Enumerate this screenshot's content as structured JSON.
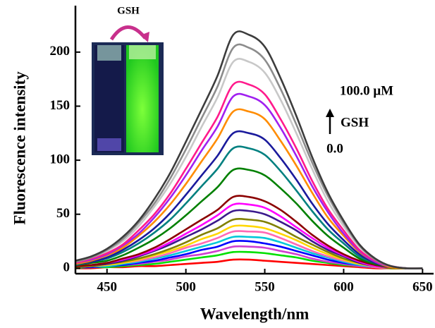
{
  "chart_data": {
    "type": "line",
    "x_label": "Wavelength/nm",
    "y_label": "Fluorescence intensity",
    "annotations": [
      "100.0 μM",
      "GSH",
      "0.0"
    ],
    "inset_label": "GSH",
    "x": [
      430,
      440,
      450,
      460,
      470,
      480,
      490,
      500,
      510,
      520,
      530,
      540,
      550,
      560,
      570,
      580,
      590,
      600,
      610,
      620,
      630,
      640,
      650
    ],
    "xlim": [
      430,
      657
    ],
    "ylim": [
      -5,
      243
    ],
    "xticks": [
      450,
      500,
      550,
      600,
      650
    ],
    "yticks": [
      0,
      50,
      100,
      150,
      200
    ],
    "series": [
      {
        "color": "#3c3c3c",
        "values": [
          7,
          11,
          18,
          29,
          44,
          64,
          88,
          117,
          147,
          178,
          216,
          216,
          205,
          176,
          141,
          103,
          70,
          44,
          22,
          9,
          2,
          0,
          0
        ]
      },
      {
        "color": "#8c8c8c",
        "values": [
          6,
          10,
          17,
          27,
          42,
          60,
          83,
          110,
          139,
          168,
          204,
          204,
          193,
          166,
          133,
          98,
          67,
          42,
          21,
          8,
          2,
          0,
          0
        ]
      },
      {
        "color": "#c8c8c8",
        "values": [
          6,
          10,
          16,
          25,
          39,
          57,
          78,
          103,
          131,
          158,
          191,
          191,
          181,
          156,
          125,
          92,
          62,
          39,
          20,
          8,
          2,
          0,
          0
        ]
      },
      {
        "color": "#ff1a8c",
        "values": [
          5,
          9,
          14,
          22,
          35,
          50,
          69,
          92,
          116,
          140,
          170,
          170,
          161,
          138,
          111,
          81,
          55,
          35,
          17,
          7,
          2,
          0,
          0
        ]
      },
      {
        "color": "#a020f0",
        "values": [
          5,
          8,
          13,
          21,
          32,
          47,
          65,
          86,
          109,
          131,
          159,
          159,
          151,
          130,
          104,
          76,
          52,
          32,
          16,
          6,
          2,
          0,
          0
        ]
      },
      {
        "color": "#ff8c00",
        "values": [
          4,
          7,
          12,
          19,
          30,
          43,
          59,
          78,
          99,
          120,
          145,
          145,
          138,
          118,
          95,
          70,
          47,
          30,
          15,
          6,
          1,
          0,
          0
        ]
      },
      {
        "color": "#1a1a9c",
        "values": [
          4,
          6,
          10,
          17,
          26,
          37,
          51,
          68,
          86,
          104,
          125,
          125,
          119,
          102,
          82,
          60,
          41,
          26,
          13,
          5,
          1,
          0,
          0
        ]
      },
      {
        "color": "#008080",
        "values": [
          3,
          6,
          9,
          15,
          23,
          33,
          45,
          60,
          76,
          92,
          111,
          111,
          105,
          90,
          72,
          53,
          36,
          23,
          11,
          5,
          1,
          0,
          0
        ]
      },
      {
        "color": "#008000",
        "values": [
          3,
          5,
          7,
          12,
          19,
          27,
          37,
          49,
          62,
          75,
          91,
          91,
          86,
          74,
          60,
          44,
          30,
          19,
          9,
          4,
          1,
          0,
          0
        ]
      },
      {
        "color": "#8b0000",
        "values": [
          2,
          3,
          5,
          9,
          13,
          19,
          27,
          36,
          45,
          54,
          66,
          66,
          62,
          54,
          43,
          31,
          21,
          13,
          7,
          3,
          1,
          0,
          0
        ]
      },
      {
        "color": "#ff00ff",
        "values": [
          2,
          3,
          5,
          8,
          12,
          17,
          24,
          32,
          40,
          49,
          59,
          59,
          56,
          48,
          38,
          28,
          19,
          12,
          6,
          2,
          1,
          0,
          0
        ]
      },
      {
        "color": "#3a1a8c",
        "values": [
          2,
          3,
          4,
          7,
          11,
          16,
          22,
          29,
          36,
          44,
          53,
          53,
          50,
          43,
          35,
          25,
          17,
          11,
          5,
          2,
          1,
          0,
          0
        ]
      },
      {
        "color": "#808000",
        "values": [
          1,
          2,
          4,
          6,
          9,
          13,
          18,
          24,
          31,
          37,
          45,
          45,
          43,
          37,
          29,
          22,
          15,
          9,
          5,
          2,
          0,
          0,
          0
        ]
      },
      {
        "color": "#ffd700",
        "values": [
          1,
          2,
          3,
          5,
          8,
          12,
          16,
          21,
          27,
          32,
          39,
          39,
          37,
          32,
          26,
          19,
          13,
          8,
          4,
          2,
          0,
          0,
          0
        ]
      },
      {
        "color": "#ff69b4",
        "values": [
          1,
          2,
          3,
          5,
          7,
          10,
          14,
          19,
          23,
          28,
          34,
          34,
          33,
          28,
          22,
          16,
          11,
          7,
          4,
          1,
          0,
          0,
          0
        ]
      },
      {
        "color": "#00c8d8",
        "values": [
          1,
          2,
          2,
          4,
          6,
          9,
          12,
          16,
          20,
          24,
          29,
          29,
          28,
          24,
          19,
          14,
          10,
          6,
          3,
          1,
          0,
          0,
          0
        ]
      },
      {
        "color": "#0000ff",
        "values": [
          1,
          1,
          2,
          3,
          5,
          7,
          10,
          13,
          17,
          20,
          25,
          25,
          23,
          20,
          16,
          12,
          8,
          5,
          3,
          1,
          0,
          0,
          0
        ]
      },
      {
        "color": "#d040d0",
        "values": [
          1,
          1,
          2,
          3,
          4,
          6,
          8,
          11,
          13,
          16,
          20,
          20,
          19,
          16,
          13,
          9,
          6,
          4,
          2,
          1,
          0,
          0,
          0
        ]
      },
      {
        "color": "#00e000",
        "values": [
          0,
          1,
          1,
          2,
          3,
          4,
          6,
          8,
          10,
          12,
          15,
          15,
          14,
          12,
          10,
          7,
          5,
          3,
          2,
          1,
          0,
          0,
          0
        ]
      },
      {
        "color": "#ff0000",
        "values": [
          0,
          0,
          1,
          1,
          2,
          2,
          3,
          4,
          5,
          6,
          8,
          8,
          7,
          6,
          5,
          4,
          3,
          2,
          1,
          0,
          0,
          0,
          0
        ]
      }
    ]
  }
}
